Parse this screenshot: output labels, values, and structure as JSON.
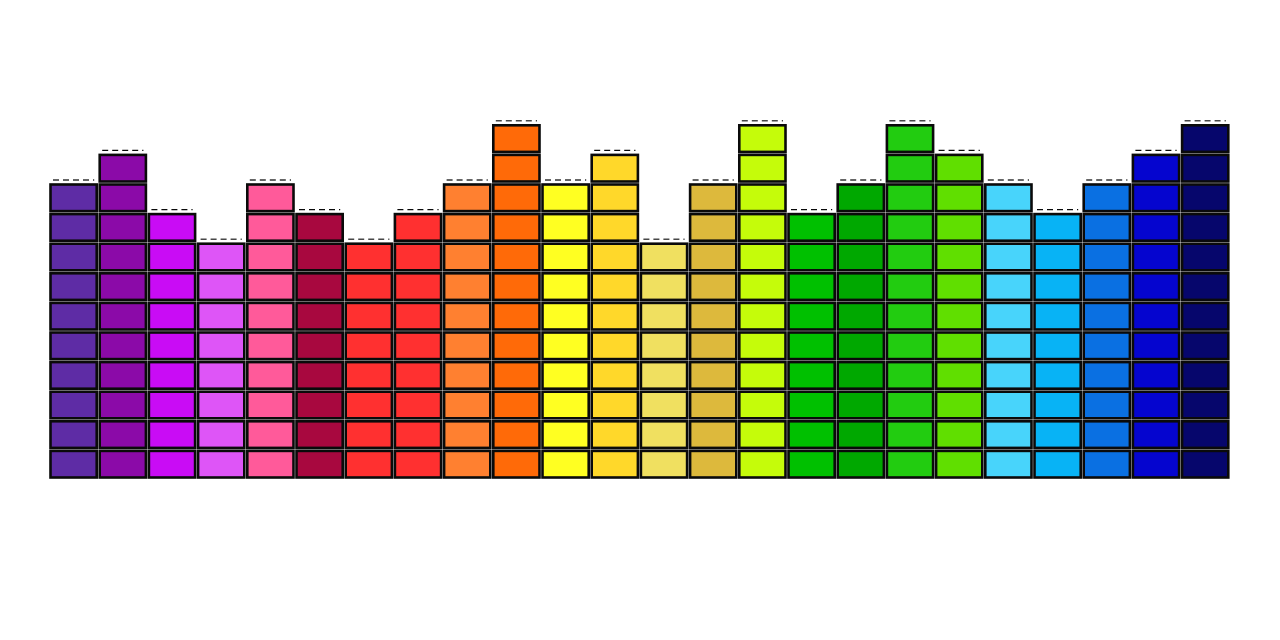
{
  "artwork": {
    "type": "equalizer-illustration",
    "outline_color": "#0a0a0a",
    "background_color": "#ffffff",
    "bars": [
      {
        "color": "#5e2ca5",
        "level": 10
      },
      {
        "color": "#8b0aa8",
        "level": 11
      },
      {
        "color": "#c90cf5",
        "level": 9
      },
      {
        "color": "#de55f7",
        "level": 8
      },
      {
        "color": "#ff5a9a",
        "level": 10
      },
      {
        "color": "#a8083f",
        "level": 9
      },
      {
        "color": "#ff3030",
        "level": 8
      },
      {
        "color": "#ff3030",
        "level": 9
      },
      {
        "color": "#ff8030",
        "level": 10
      },
      {
        "color": "#ff6a08",
        "level": 12
      },
      {
        "color": "#ffff22",
        "level": 10
      },
      {
        "color": "#ffd82a",
        "level": 11
      },
      {
        "color": "#f0e060",
        "level": 8
      },
      {
        "color": "#ddb93c",
        "level": 10
      },
      {
        "color": "#c5fc0a",
        "level": 12
      },
      {
        "color": "#00c000",
        "level": 9
      },
      {
        "color": "#00a800",
        "level": 10
      },
      {
        "color": "#22cc10",
        "level": 12
      },
      {
        "color": "#60df00",
        "level": 11
      },
      {
        "color": "#48d4fb",
        "level": 10
      },
      {
        "color": "#08b3f5",
        "level": 9
      },
      {
        "color": "#0a70e2",
        "level": 10
      },
      {
        "color": "#0505cf",
        "level": 11
      },
      {
        "color": "#06066c",
        "level": 12
      }
    ]
  }
}
